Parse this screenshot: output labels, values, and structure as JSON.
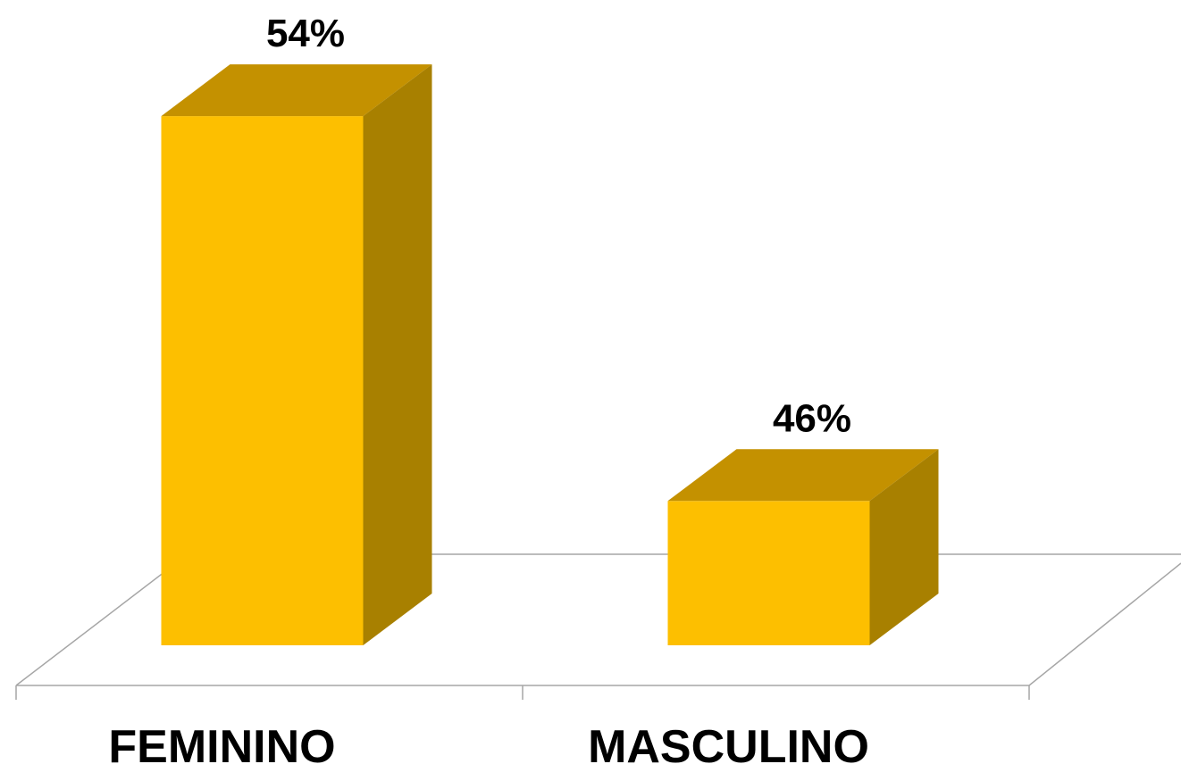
{
  "chart_data": {
    "type": "bar",
    "title": "",
    "xlabel": "",
    "ylabel": "",
    "categories": [
      "FEMININO",
      "MASCULINO"
    ],
    "values": [
      54,
      46
    ],
    "data_labels": [
      "54%",
      "46%"
    ],
    "ylim": [
      43,
      54
    ],
    "grid": false,
    "legend": "none",
    "style": "3d-column"
  },
  "colors": {
    "bar_front": "#FDBF00",
    "bar_top": "#C49100",
    "bar_side": "#A88000",
    "floor_line": "#A6A6A6"
  }
}
